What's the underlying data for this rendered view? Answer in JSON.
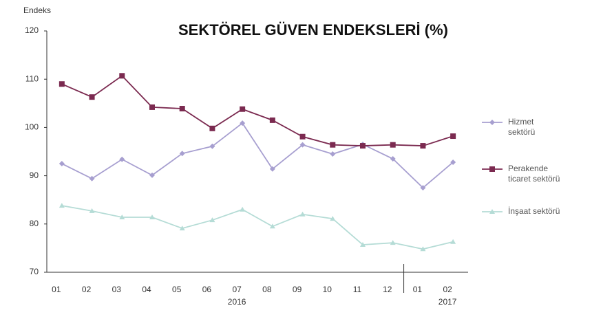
{
  "chart_data": {
    "type": "line",
    "title": "SEKTÖREL GÜVEN ENDEKSLERİ (%)",
    "y_label": "Endeks",
    "categories": [
      "01",
      "02",
      "03",
      "04",
      "05",
      "06",
      "07",
      "08",
      "09",
      "10",
      "11",
      "12",
      "01",
      "02"
    ],
    "years": [
      "2016",
      "2017"
    ],
    "series": [
      {
        "name": "Hizmet sektörü",
        "color": "#a79fd0",
        "marker": "diamond",
        "values": [
          92.5,
          89.4,
          93.4,
          90.1,
          94.6,
          96.1,
          100.9,
          91.4,
          96.4,
          94.5,
          96.5,
          93.5,
          87.5,
          92.8
        ]
      },
      {
        "name": "Perakende ticaret sektörü",
        "color": "#7b2a50",
        "marker": "square",
        "values": [
          109.0,
          106.3,
          110.7,
          104.2,
          103.9,
          99.8,
          103.8,
          101.5,
          98.1,
          96.4,
          96.2,
          96.4,
          96.2,
          98.2
        ]
      },
      {
        "name": "İnşaat sektörü",
        "color": "#b5dcd6",
        "marker": "triangle",
        "values": [
          83.8,
          82.7,
          81.4,
          81.4,
          79.1,
          80.8,
          83.0,
          79.5,
          82.0,
          81.1,
          75.7,
          76.1,
          74.8,
          76.3
        ]
      }
    ],
    "ylim": [
      70,
      120
    ],
    "yticks": [
      70,
      80,
      90,
      100,
      110,
      120
    ],
    "grid": false,
    "legend": "right"
  }
}
